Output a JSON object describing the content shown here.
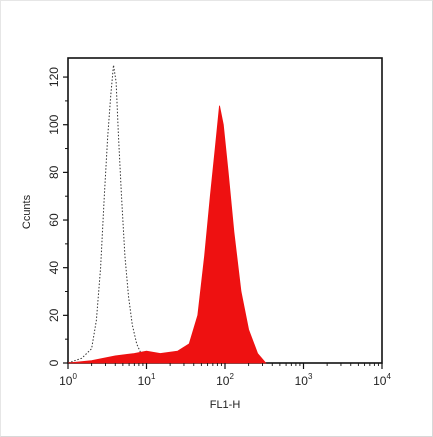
{
  "chart_data": {
    "type": "area",
    "xlabel": "FL1-H",
    "ylabel": "Ccunts",
    "xscale": "log",
    "xlim": [
      1,
      10000
    ],
    "ylim": [
      0,
      128
    ],
    "x_ticks": [
      {
        "base": "10",
        "exp": "0",
        "value": 1
      },
      {
        "base": "10",
        "exp": "1",
        "value": 10
      },
      {
        "base": "10",
        "exp": "2",
        "value": 100
      },
      {
        "base": "10",
        "exp": "3",
        "value": 1000
      },
      {
        "base": "10",
        "exp": "4",
        "value": 10000
      }
    ],
    "y_ticks": [
      "0",
      "20",
      "40",
      "60",
      "80",
      "100",
      "120"
    ],
    "grid": false,
    "series": [
      {
        "style": "dotted-outline",
        "color": "#333333",
        "x": [
          1.0,
          1.5,
          2.0,
          2.3,
          2.6,
          2.9,
          3.2,
          3.5,
          3.8,
          4.1,
          4.4,
          4.8,
          5.3,
          5.9,
          6.6,
          7.5,
          8.5,
          10,
          12,
          15
        ],
        "y": [
          0,
          2,
          6,
          18,
          40,
          70,
          95,
          112,
          125,
          118,
          95,
          70,
          45,
          28,
          16,
          8,
          4,
          2,
          1,
          0
        ]
      },
      {
        "style": "filled",
        "color": "#ee1111",
        "x": [
          1.0,
          2,
          4,
          7,
          10,
          15,
          25,
          35,
          45,
          55,
          65,
          75,
          85,
          95,
          110,
          130,
          160,
          200,
          260,
          330
        ],
        "y": [
          0,
          1,
          3,
          4,
          5,
          4,
          5,
          8,
          20,
          45,
          70,
          90,
          108,
          100,
          80,
          55,
          30,
          14,
          4,
          0
        ]
      }
    ]
  }
}
